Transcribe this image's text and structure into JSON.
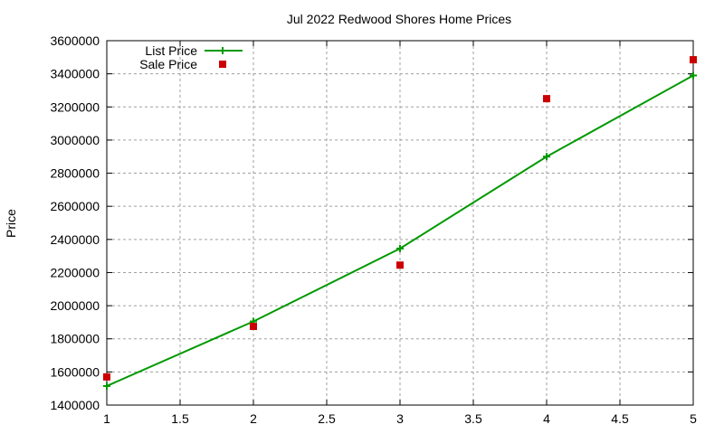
{
  "chart_data": {
    "type": "line",
    "title": "Jul 2022 Redwood Shores Home Prices",
    "xlabel": "",
    "ylabel": "Price",
    "xlim": [
      1,
      5
    ],
    "ylim": [
      1400000,
      3600000
    ],
    "x_ticks": [
      "1",
      "1.5",
      "2",
      "2.5",
      "3",
      "3.5",
      "4",
      "4.5",
      "5"
    ],
    "y_ticks": [
      "1400000",
      "1600000",
      "1800000",
      "2000000",
      "2200000",
      "2400000",
      "2600000",
      "2800000",
      "3000000",
      "3200000",
      "3400000",
      "3600000"
    ],
    "grid": true,
    "legend_position": "top-left",
    "x": [
      1,
      2,
      3,
      4,
      5
    ],
    "series": [
      {
        "name": "List Price",
        "style": "linespoints",
        "color": "#009900",
        "marker": "plus",
        "values": [
          1515000,
          1905000,
          2345000,
          2900000,
          3390000
        ]
      },
      {
        "name": "Sale Price",
        "style": "points",
        "color": "#cc0000",
        "marker": "square",
        "values": [
          1570000,
          1875000,
          2245000,
          3250000,
          3485000
        ]
      }
    ]
  }
}
